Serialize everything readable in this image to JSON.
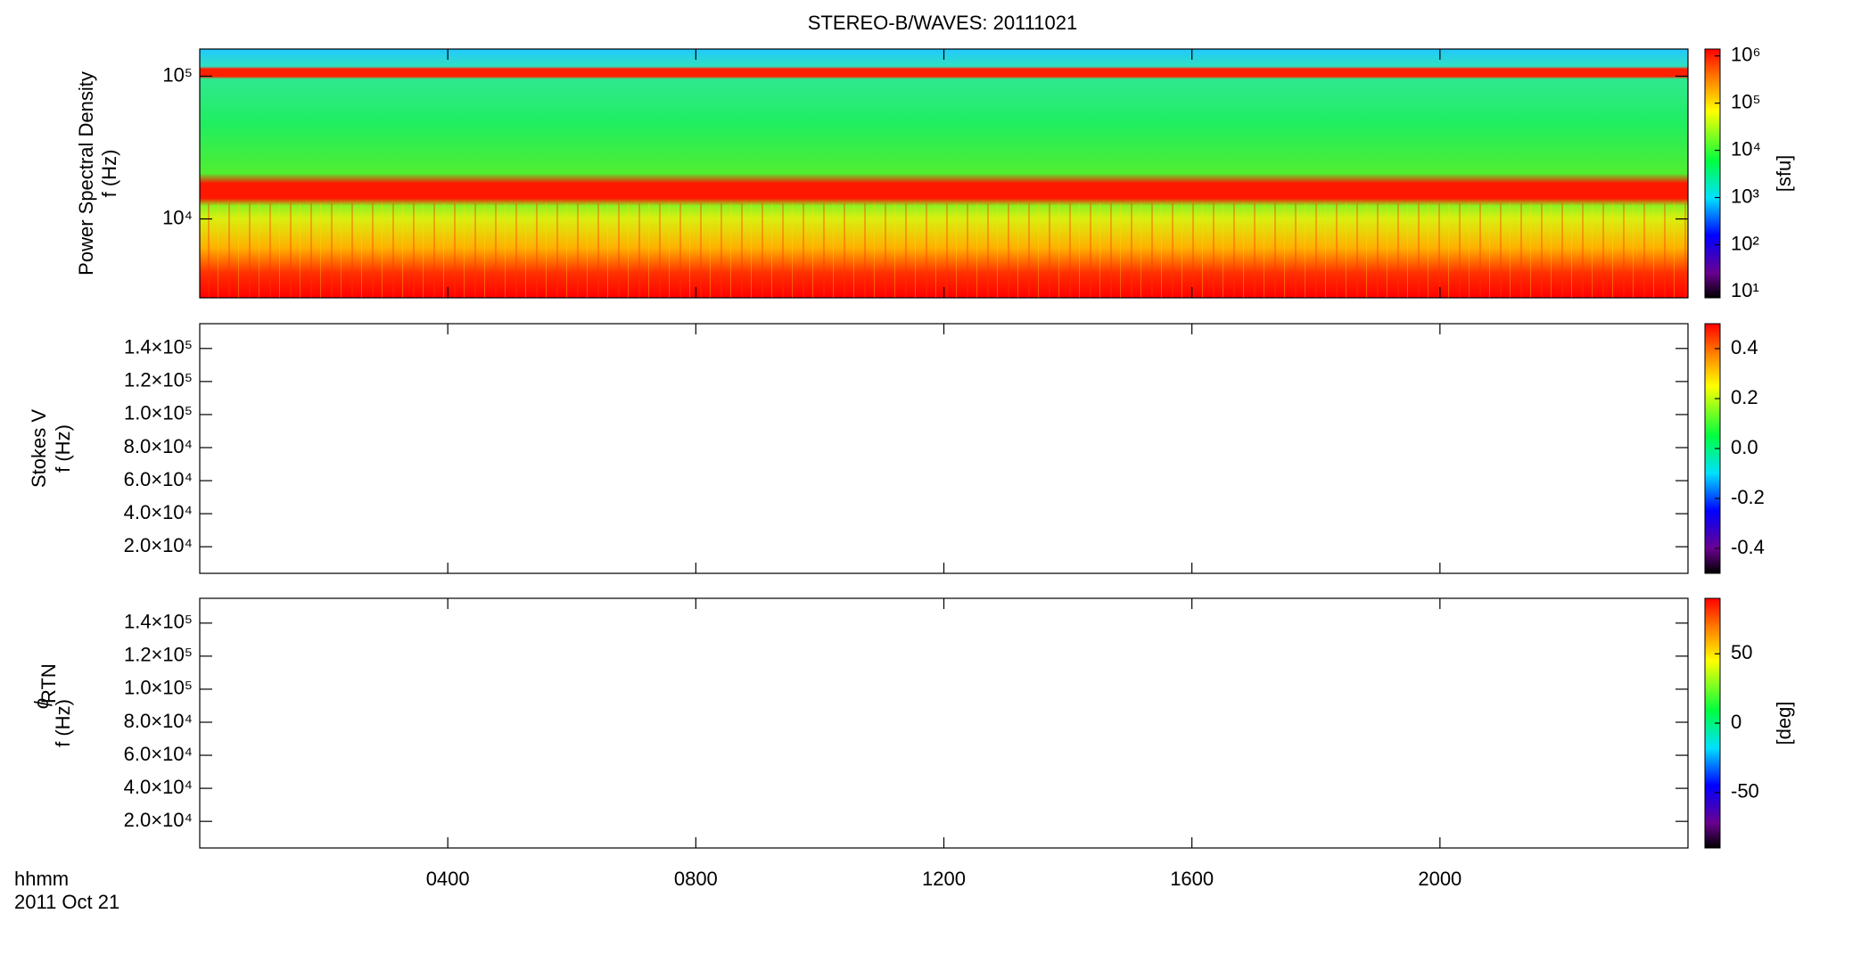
{
  "title": "STEREO-B/WAVES: 20111021",
  "time_axis": {
    "xlim": [
      0,
      24
    ],
    "xticks": [
      {
        "value": 4,
        "label": "0400"
      },
      {
        "value": 8,
        "label": "0800"
      },
      {
        "value": 12,
        "label": "1200"
      },
      {
        "value": 16,
        "label": "1600"
      },
      {
        "value": 20,
        "label": "2000"
      }
    ],
    "unit_label": "hhmm",
    "date_label": "2011 Oct 21"
  },
  "chart_data": [
    {
      "type": "heatmap",
      "ylabel": "Power Spectral Density",
      "ylabel2": "f (Hz)",
      "log_y": true,
      "ylim": [
        2800,
        155000
      ],
      "yticks": [
        {
          "value": 10000,
          "label": "10⁴"
        },
        {
          "value": 100000,
          "label": "10⁵"
        }
      ],
      "colorbar": {
        "log": true,
        "lim": [
          7.5,
          1400000
        ],
        "label": "[sfu]",
        "ticks": [
          {
            "value": 10,
            "label": "10¹"
          },
          {
            "value": 100,
            "label": "10²"
          },
          {
            "value": 1000,
            "label": "10³"
          },
          {
            "value": 10000,
            "label": "10⁴"
          },
          {
            "value": 100000,
            "label": "10⁵"
          },
          {
            "value": 1000000,
            "label": "10⁶"
          }
        ]
      }
    },
    {
      "type": "heatmap",
      "ylabel": "Stokes V",
      "ylabel2": "f (Hz)",
      "log_y": false,
      "ylim": [
        3900,
        155000
      ],
      "yticks": [
        {
          "value": 20000,
          "label": "2.0×10⁴"
        },
        {
          "value": 40000,
          "label": "4.0×10⁴"
        },
        {
          "value": 60000,
          "label": "6.0×10⁴"
        },
        {
          "value": 80000,
          "label": "8.0×10⁴"
        },
        {
          "value": 100000,
          "label": "1.0×10⁵"
        },
        {
          "value": 120000,
          "label": "1.2×10⁵"
        },
        {
          "value": 140000,
          "label": "1.4×10⁵"
        }
      ],
      "colorbar": {
        "log": false,
        "lim": [
          -0.5,
          0.5
        ],
        "ticks": [
          -0.4,
          -0.2,
          {
            "value": 0,
            "label": "0.0"
          },
          0.2,
          0.4
        ]
      }
    },
    {
      "type": "heatmap",
      "ylabel": "ϕ",
      "ylabel_sub": "RTN",
      "ylabel2": "f (Hz)",
      "log_y": false,
      "ylim": [
        3900,
        155000
      ],
      "yticks": [
        {
          "value": 20000,
          "label": "2.0×10⁴"
        },
        {
          "value": 40000,
          "label": "4.0×10⁴"
        },
        {
          "value": 60000,
          "label": "6.0×10⁴"
        },
        {
          "value": 80000,
          "label": "8.0×10⁴"
        },
        {
          "value": 100000,
          "label": "1.0×10⁵"
        },
        {
          "value": 120000,
          "label": "1.2×10⁵"
        },
        {
          "value": 140000,
          "label": "1.4×10⁵"
        }
      ],
      "colorbar": {
        "log": false,
        "lim": [
          -90,
          90
        ],
        "label": "[deg]",
        "ticks": [
          -50,
          0,
          50
        ]
      }
    }
  ]
}
